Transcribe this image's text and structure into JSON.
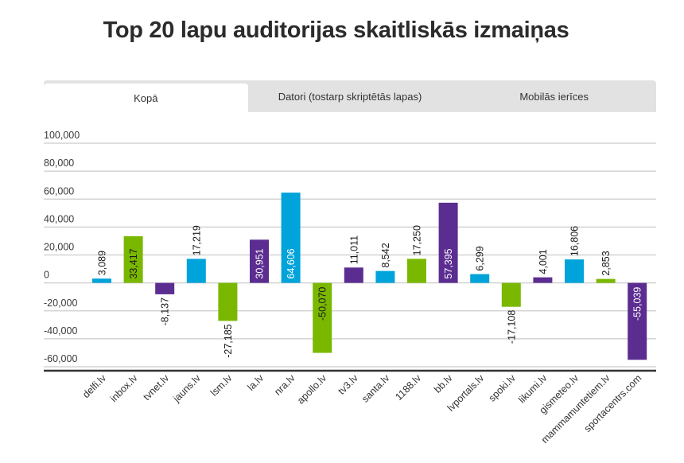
{
  "title": "Top 20 lapu auditorijas skaitliskās izmaiņas",
  "tabs": [
    {
      "label": "Kopā",
      "active": true
    },
    {
      "label": "Datori (tostarp skriptētās lapas)",
      "active": false
    },
    {
      "label": "Mobilās ierīces",
      "active": false
    }
  ],
  "colors": {
    "blue": "#00a3da",
    "green": "#7ab800",
    "purple": "#5c2d91",
    "grid": "#cccccc",
    "axis": "#333333"
  },
  "chart_data": {
    "type": "bar",
    "title": "Top 20 lapu auditorijas skaitliskās izmaiņas",
    "xlabel": "",
    "ylabel": "",
    "ylim": [
      -60000,
      100000
    ],
    "yticks": [
      100000,
      80000,
      60000,
      40000,
      20000,
      0,
      -20000,
      -40000,
      -60000
    ],
    "ytick_labels": [
      "100,000",
      "80,000",
      "60,000",
      "40,000",
      "20,000",
      "0",
      "-20,000",
      "-40,000",
      "-60,000"
    ],
    "grid": true,
    "legend": "none",
    "categories": [
      "delfi.lv",
      "inbox.lv",
      "tvnet.lv",
      "jauns.lv",
      "lsm.lv",
      "la.lv",
      "nra.lv",
      "apollo.lv",
      "tv3.lv",
      "santa.lv",
      "1188.lv",
      "bb.lv",
      "lvportals.lv",
      "spoki.lv",
      "likumi.lv",
      "gismeteo.lv",
      "mammamuntetiem.lv",
      "sportacentrs.com"
    ],
    "values": [
      3089,
      33417,
      -8137,
      17219,
      -27185,
      30951,
      64606,
      -50070,
      11011,
      8542,
      17250,
      57395,
      6299,
      -17108,
      4001,
      16806,
      2853,
      -55039
    ],
    "value_labels": [
      "3,089",
      "33,417",
      "-8,137",
      "17,219",
      "-27,185",
      "30,951",
      "64,606",
      "-50,070",
      "11,011",
      "8,542",
      "17,250",
      "57,395",
      "6,299",
      "-17,108",
      "4,001",
      "16,806",
      "2,853",
      "-55,039"
    ],
    "bar_colors": [
      "blue",
      "green",
      "purple",
      "blue",
      "green",
      "purple",
      "blue",
      "green",
      "purple",
      "blue",
      "green",
      "purple",
      "blue",
      "green",
      "purple",
      "blue",
      "green",
      "purple"
    ],
    "label_inside": [
      false,
      true,
      false,
      false,
      false,
      true,
      true,
      true,
      false,
      false,
      false,
      true,
      false,
      false,
      false,
      false,
      false,
      true
    ]
  }
}
